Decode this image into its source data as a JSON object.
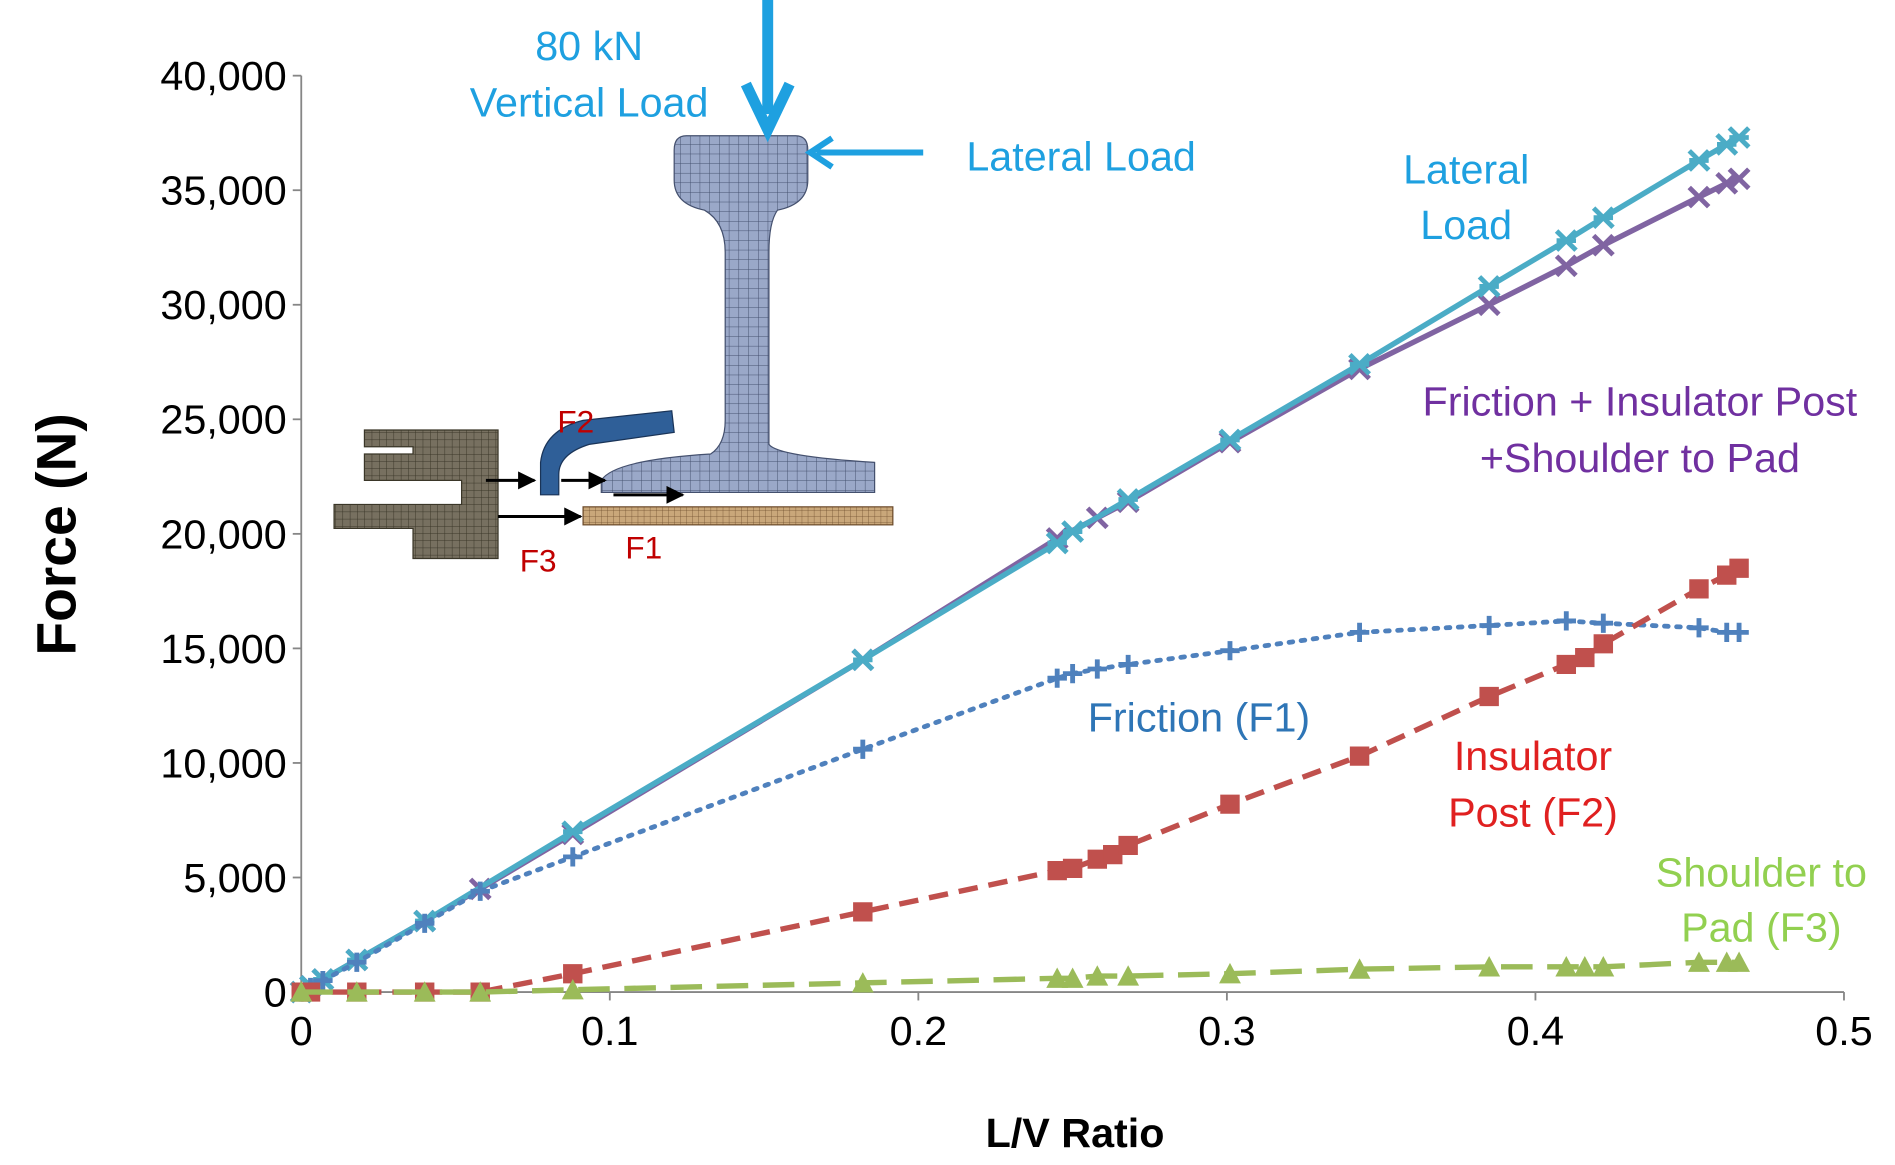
{
  "chart_data": {
    "type": "line",
    "x_label": "L/V Ratio",
    "y_label": "Force (N)",
    "xlim": [
      0,
      0.5
    ],
    "xticks": [
      0,
      0.1,
      0.2,
      0.3,
      0.4,
      0.5
    ],
    "ylim": [
      0,
      40000
    ],
    "yticks": [
      0,
      {
        "value": 5000,
        "label": "5,000"
      },
      {
        "value": 10000,
        "label": "10,000"
      },
      {
        "value": 15000,
        "label": "15,000"
      },
      {
        "value": 20000,
        "label": "20,000"
      },
      {
        "value": 25000,
        "label": "25,000"
      },
      {
        "value": 30000,
        "label": "30,000"
      },
      {
        "value": 35000,
        "label": "35,000"
      },
      {
        "value": 40000,
        "label": "40,000"
      }
    ],
    "grid": false,
    "series": [
      {
        "name": [
          "Friction + Insulator Post",
          "+Shoulder to Pad"
        ],
        "color": "#8064a2",
        "dash": "solid",
        "marker": "x",
        "x": [
          0,
          0.003,
          0.007,
          0.018,
          0.04,
          0.058,
          0.088,
          0.182,
          0.245,
          0.258,
          0.268,
          0.301,
          0.343,
          0.385,
          0.41,
          0.422,
          0.453,
          0.462,
          0.466
        ],
        "values": [
          0,
          250,
          550,
          1400,
          3100,
          4500,
          6900,
          14500,
          19800,
          20700,
          21400,
          24000,
          27200,
          30000,
          31700,
          32600,
          34700,
          35300,
          35500
        ]
      },
      {
        "name": [
          "Lateral",
          "Load"
        ],
        "color": "#4bacc6",
        "dash": "solid",
        "marker": "star",
        "x": [
          0,
          0.003,
          0.007,
          0.018,
          0.04,
          0.088,
          0.182,
          0.245,
          0.25,
          0.268,
          0.301,
          0.343,
          0.385,
          0.41,
          0.422,
          0.453,
          0.462,
          0.466
        ],
        "values": [
          0,
          250,
          550,
          1400,
          3100,
          7000,
          14500,
          19600,
          20100,
          21500,
          24100,
          27400,
          30800,
          32800,
          33800,
          36300,
          37000,
          37300
        ]
      },
      {
        "name": [
          "Friction (F1)"
        ],
        "color": "#4f81bd",
        "dash": "dotted",
        "marker": "plus",
        "x": [
          0,
          0.003,
          0.007,
          0.018,
          0.04,
          0.058,
          0.088,
          0.182,
          0.245,
          0.25,
          0.258,
          0.268,
          0.301,
          0.343,
          0.385,
          0.41,
          0.422,
          0.453,
          0.462,
          0.466
        ],
        "values": [
          0,
          200,
          500,
          1300,
          3000,
          4400,
          5900,
          10600,
          13700,
          13900,
          14100,
          14300,
          14900,
          15700,
          16000,
          16200,
          16100,
          15900,
          15700,
          15700
        ]
      },
      {
        "name": [
          "Insulator",
          "Post (F2)"
        ],
        "color": "#c0504d",
        "dash": "dashed",
        "marker": "square",
        "x": [
          0,
          0.003,
          0.018,
          0.04,
          0.058,
          0.088,
          0.182,
          0.245,
          0.25,
          0.258,
          0.263,
          0.268,
          0.301,
          0.343,
          0.385,
          0.41,
          0.416,
          0.422,
          0.453,
          0.462,
          0.466
        ],
        "values": [
          0,
          0,
          0,
          0,
          0,
          800,
          3500,
          5300,
          5400,
          5800,
          6000,
          6400,
          8200,
          10300,
          12900,
          14300,
          14600,
          15200,
          17600,
          18200,
          18500
        ]
      },
      {
        "name": [
          "Shoulder to",
          "Pad (F3)"
        ],
        "color": "#9bbb59",
        "dash": "longdash",
        "marker": "triangle",
        "x": [
          0,
          0.018,
          0.04,
          0.058,
          0.088,
          0.182,
          0.245,
          0.25,
          0.258,
          0.268,
          0.301,
          0.343,
          0.385,
          0.41,
          0.416,
          0.422,
          0.453,
          0.462,
          0.466
        ],
        "values": [
          0,
          0,
          0,
          0,
          100,
          400,
          600,
          600,
          700,
          700,
          800,
          1000,
          1100,
          1100,
          1100,
          1100,
          1300,
          1300,
          1300
        ]
      }
    ],
    "diagram_labels": {
      "load_value": "80 kN",
      "vertical_load": "Vertical Load",
      "lateral_load": "Lateral Load",
      "f1": "F1",
      "f2": "F2",
      "f3": "F3"
    }
  }
}
